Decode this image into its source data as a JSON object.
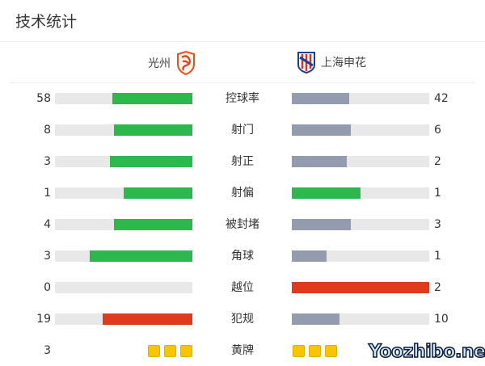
{
  "title": "技术统计",
  "home": {
    "name": "光州",
    "logo_icon": "gwangju-fc-crest"
  },
  "away": {
    "name": "上海申花",
    "logo_icon": "shanghai-shenhua-crest"
  },
  "colors": {
    "win": "#2db84d",
    "lose": "#939cae",
    "bad": "#e03a1e",
    "track": "#e8e8e8",
    "card": "#f8c600"
  },
  "stats": [
    {
      "label": "控球率",
      "home": "58",
      "away": "42",
      "home_share": 0.58,
      "away_share": 0.42,
      "home_color": "#2db84d",
      "away_color": "#939cae"
    },
    {
      "label": "射门",
      "home": "8",
      "away": "6",
      "home_share": 0.571,
      "away_share": 0.429,
      "home_color": "#2db84d",
      "away_color": "#939cae"
    },
    {
      "label": "射正",
      "home": "3",
      "away": "2",
      "home_share": 0.6,
      "away_share": 0.4,
      "home_color": "#2db84d",
      "away_color": "#939cae"
    },
    {
      "label": "射偏",
      "home": "1",
      "away": "1",
      "home_share": 0.5,
      "away_share": 0.5,
      "home_color": "#2db84d",
      "away_color": "#2db84d"
    },
    {
      "label": "被封堵",
      "home": "4",
      "away": "3",
      "home_share": 0.571,
      "away_share": 0.429,
      "home_color": "#2db84d",
      "away_color": "#939cae"
    },
    {
      "label": "角球",
      "home": "3",
      "away": "1",
      "home_share": 0.75,
      "away_share": 0.25,
      "home_color": "#2db84d",
      "away_color": "#939cae"
    },
    {
      "label": "越位",
      "home": "0",
      "away": "2",
      "home_share": 0,
      "away_share": 1,
      "home_color": "#939cae",
      "away_color": "#e03a1e"
    },
    {
      "label": "犯规",
      "home": "19",
      "away": "10",
      "home_share": 0.655,
      "away_share": 0.345,
      "home_color": "#e03a1e",
      "away_color": "#939cae"
    }
  ],
  "yellow": {
    "label": "黄牌",
    "home": "3",
    "home_cards": 3,
    "away_cards": 3
  },
  "watermark": "Yoozhibo.net"
}
